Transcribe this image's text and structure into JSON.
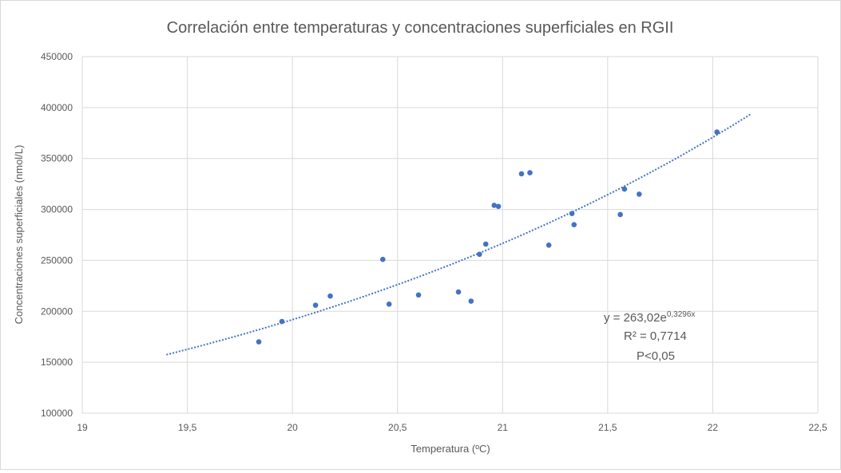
{
  "chart_data": {
    "type": "scatter",
    "title": "Correlación entre temperaturas y concentraciones superficiales en RGII",
    "xlabel": "Temperatura (ºC)",
    "ylabel": "Concentraciones superficiales (nmol/L)",
    "xlim": [
      19,
      22.5
    ],
    "ylim": [
      100000,
      450000
    ],
    "x_ticks": [
      "19",
      "19,5",
      "20",
      "20,5",
      "21",
      "21,5",
      "22",
      "22,5"
    ],
    "y_ticks": [
      "100000",
      "150000",
      "200000",
      "250000",
      "300000",
      "350000",
      "400000",
      "450000"
    ],
    "grid": true,
    "marker_color": "#4472c4",
    "trendline_color": "#4472c4",
    "points": [
      {
        "x": 19.84,
        "y": 170000
      },
      {
        "x": 19.95,
        "y": 190000
      },
      {
        "x": 20.11,
        "y": 206000
      },
      {
        "x": 20.18,
        "y": 215000
      },
      {
        "x": 20.43,
        "y": 251000
      },
      {
        "x": 20.46,
        "y": 207000
      },
      {
        "x": 20.6,
        "y": 216000
      },
      {
        "x": 20.79,
        "y": 219000
      },
      {
        "x": 20.85,
        "y": 210000
      },
      {
        "x": 20.89,
        "y": 256000
      },
      {
        "x": 20.92,
        "y": 266000
      },
      {
        "x": 20.96,
        "y": 304000
      },
      {
        "x": 20.98,
        "y": 303000
      },
      {
        "x": 21.09,
        "y": 335000
      },
      {
        "x": 21.13,
        "y": 336000
      },
      {
        "x": 21.22,
        "y": 265000
      },
      {
        "x": 21.33,
        "y": 296000
      },
      {
        "x": 21.34,
        "y": 285000
      },
      {
        "x": 21.56,
        "y": 295000
      },
      {
        "x": 21.58,
        "y": 320000
      },
      {
        "x": 21.65,
        "y": 315000
      },
      {
        "x": 22.02,
        "y": 376000
      }
    ],
    "trendline": {
      "type": "exponential",
      "a": 263.02,
      "b": 0.3296,
      "x_range": [
        19.4,
        22.18
      ]
    },
    "annotation": {
      "equation_base": "y = 263,02e",
      "equation_exp": "0,3296x",
      "r2": "R² = 0,7714",
      "p": "P<0,05"
    }
  }
}
